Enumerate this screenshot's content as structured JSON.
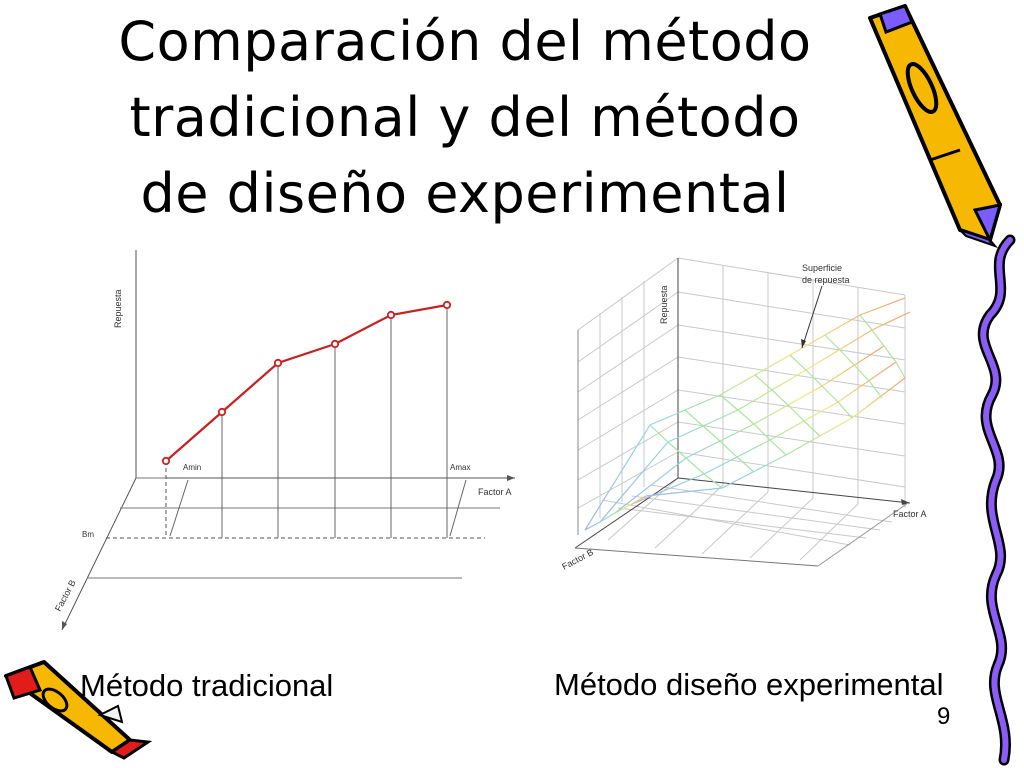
{
  "slide": {
    "title_lines": [
      "Comparación del método",
      "tradicional y del método",
      "de diseño experimental"
    ],
    "page_number": "9"
  },
  "left_diagram": {
    "caption": "Método tradicional",
    "labels": {
      "y_axis": "Repuesta",
      "x_axis": "Factor A",
      "z_axis": "Factor B",
      "a_min": "Amin",
      "a_max": "Amax",
      "b_m": "Bm"
    },
    "line_color": "#cc1f1f"
  },
  "right_diagram": {
    "caption": "Método diseño experimental",
    "labels": {
      "y_axis": "Repuesta",
      "x_axis": "Factor A",
      "z_axis": "Factor B",
      "surface_line1": "Superficie",
      "surface_line2": "de repuesta"
    }
  },
  "icons": {
    "top_right": "pencil-icon",
    "bottom_left": "pencil-icon",
    "right_edge": "squiggle-border-icon"
  }
}
